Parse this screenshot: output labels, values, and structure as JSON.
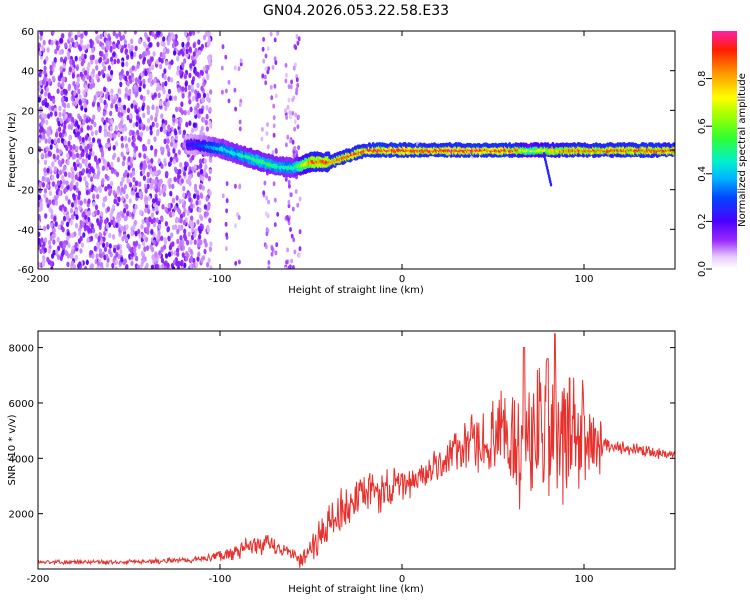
{
  "title": "GN04.2026.053.22.58.E33",
  "chart_data": [
    {
      "type": "heatmap",
      "name": "spectrogram",
      "xlabel": "Height of straight line (km)",
      "ylabel": "Frequency (Hz)",
      "xlim": [
        -200,
        150
      ],
      "ylim": [
        -60,
        60
      ],
      "xticks": [
        -200,
        -100,
        0,
        100
      ],
      "yticks": [
        -60,
        -40,
        -20,
        0,
        20,
        40,
        60
      ],
      "tick_labels_x": [
        "-200",
        "-100",
        "0",
        "100"
      ],
      "tick_labels_y": [
        "-60",
        "-40",
        "-20",
        "0",
        "20",
        "40",
        "60"
      ],
      "colorbar": {
        "label": "Normalized spectral amplitude",
        "range": [
          0,
          1
        ],
        "ticks": [
          0.0,
          0.2,
          0.4,
          0.6,
          0.8
        ],
        "tick_labels": [
          "0.0",
          "0.2",
          "0.4",
          "0.6",
          "0.8"
        ]
      },
      "ridge": {
        "description_points_km_hz": [
          [
            -115,
            3
          ],
          [
            -100,
            1
          ],
          [
            -90,
            -2
          ],
          [
            -80,
            -5
          ],
          [
            -70,
            -8
          ],
          [
            -60,
            -9
          ],
          [
            -50,
            -6
          ],
          [
            -40,
            -6
          ],
          [
            -30,
            -3
          ],
          [
            -20,
            0
          ],
          [
            0,
            0
          ],
          [
            50,
            0
          ],
          [
            100,
            0
          ],
          [
            150,
            0
          ]
        ],
        "amplitude_points_km": [
          [
            -115,
            0.25
          ],
          [
            -100,
            0.45
          ],
          [
            -80,
            0.55
          ],
          [
            -60,
            0.5
          ],
          [
            -50,
            0.9
          ],
          [
            -35,
            0.95
          ],
          [
            -20,
            1.0
          ],
          [
            60,
            1.0
          ],
          [
            70,
            0.7
          ],
          [
            80,
            0.85
          ],
          [
            100,
            0.95
          ],
          [
            150,
            0.95
          ]
        ]
      },
      "noise_region_km": [
        -200,
        -105
      ]
    },
    {
      "type": "line",
      "name": "snr",
      "xlabel": "Height of straight line (km)",
      "ylabel": "SNR (10 * v/v)",
      "xlim": [
        -200,
        150
      ],
      "ylim": [
        0,
        8600
      ],
      "xticks": [
        -200,
        -100,
        0,
        100
      ],
      "yticks": [
        2000,
        4000,
        6000,
        8000
      ],
      "tick_labels_x": [
        "-200",
        "-100",
        "0",
        "100"
      ],
      "tick_labels_y": [
        "2000",
        "4000",
        "6000",
        "8000"
      ],
      "color": "#e8302c",
      "envelope_km_snr": [
        [
          -200,
          250
        ],
        [
          -150,
          250
        ],
        [
          -110,
          350
        ],
        [
          -90,
          650
        ],
        [
          -75,
          900
        ],
        [
          -65,
          700
        ],
        [
          -55,
          350
        ],
        [
          -45,
          1200
        ],
        [
          -35,
          2000
        ],
        [
          -20,
          2700
        ],
        [
          0,
          3000
        ],
        [
          15,
          3500
        ],
        [
          30,
          4300
        ],
        [
          40,
          4500
        ],
        [
          55,
          4700
        ],
        [
          70,
          4700
        ],
        [
          85,
          4800
        ],
        [
          100,
          4700
        ],
        [
          110,
          4500
        ],
        [
          120,
          4400
        ],
        [
          150,
          4100
        ]
      ],
      "fluctuation_km_amp": [
        [
          -200,
          80
        ],
        [
          -110,
          120
        ],
        [
          -80,
          500
        ],
        [
          -60,
          250
        ],
        [
          -45,
          800
        ],
        [
          -30,
          1000
        ],
        [
          -10,
          900
        ],
        [
          10,
          600
        ],
        [
          30,
          900
        ],
        [
          50,
          1600
        ],
        [
          65,
          2800
        ],
        [
          80,
          3400
        ],
        [
          95,
          2500
        ],
        [
          108,
          1500
        ],
        [
          112,
          300
        ],
        [
          150,
          200
        ]
      ],
      "peak_km_snr": [
        [
          84,
          8500
        ],
        [
          67,
          8000
        ],
        [
          80,
          7600
        ],
        [
          92,
          6900
        ]
      ]
    }
  ]
}
